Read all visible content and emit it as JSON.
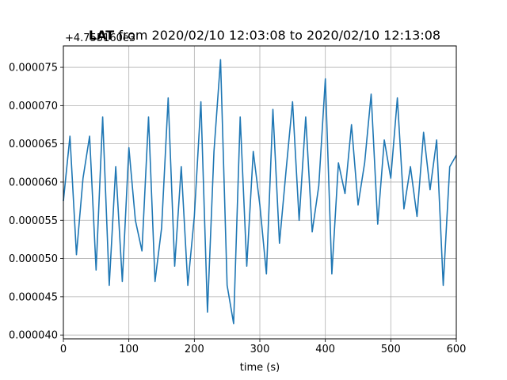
{
  "chart_data": {
    "type": "line",
    "title_bold": "LAT",
    "title_rest": " from 2020/02/10 12:03:08 to 2020/02/10 12:13:08",
    "offset_text": "+4.755160e3",
    "xlabel": "time (s)",
    "ylabel": "",
    "xlim": [
      0,
      600
    ],
    "ylim": [
      3.95e-05,
      7.78e-05
    ],
    "grid": true,
    "x_ticks": [
      0,
      100,
      200,
      300,
      400,
      500,
      600
    ],
    "x_tick_labels": [
      "0",
      "100",
      "200",
      "300",
      "400",
      "500",
      "600"
    ],
    "y_ticks": [
      4e-05,
      4.5e-05,
      5e-05,
      5.5e-05,
      6e-05,
      6.5e-05,
      7e-05,
      7.5e-05
    ],
    "y_tick_labels": [
      "0.000040",
      "0.000045",
      "0.000050",
      "0.000055",
      "0.000060",
      "0.000065",
      "0.000070",
      "0.000075"
    ],
    "series": [
      {
        "color": "#1f77b4",
        "x": [
          0,
          10,
          20,
          30,
          40,
          50,
          60,
          70,
          80,
          90,
          100,
          110,
          120,
          130,
          140,
          150,
          160,
          170,
          180,
          190,
          200,
          210,
          220,
          230,
          240,
          250,
          260,
          270,
          280,
          290,
          300,
          310,
          320,
          330,
          340,
          350,
          360,
          370,
          380,
          390,
          400,
          410,
          420,
          430,
          440,
          450,
          460,
          470,
          480,
          490,
          500,
          510,
          520,
          530,
          540,
          550,
          560,
          570,
          580,
          590,
          600
        ],
        "y": [
          5.75e-05,
          6.6e-05,
          5.05e-05,
          6.05e-05,
          6.6e-05,
          4.85e-05,
          6.85e-05,
          4.65e-05,
          6.2e-05,
          4.7e-05,
          6.45e-05,
          5.5e-05,
          5.1e-05,
          6.85e-05,
          4.7e-05,
          5.4e-05,
          7.1e-05,
          4.9e-05,
          6.2e-05,
          4.65e-05,
          5.55e-05,
          7.05e-05,
          4.3e-05,
          6.4e-05,
          7.6e-05,
          4.65e-05,
          4.15e-05,
          6.85e-05,
          4.9e-05,
          6.4e-05,
          5.7e-05,
          4.8e-05,
          6.95e-05,
          5.2e-05,
          6.15e-05,
          7.05e-05,
          5.5e-05,
          6.85e-05,
          5.35e-05,
          5.95e-05,
          7.35e-05,
          4.8e-05,
          6.25e-05,
          5.85e-05,
          6.75e-05,
          5.7e-05,
          6.25e-05,
          7.15e-05,
          5.45e-05,
          6.55e-05,
          6.05e-05,
          7.1e-05,
          5.65e-05,
          6.2e-05,
          5.55e-05,
          6.65e-05,
          5.9e-05,
          6.55e-05,
          4.65e-05,
          6.2e-05,
          6.35e-05
        ]
      }
    ]
  }
}
